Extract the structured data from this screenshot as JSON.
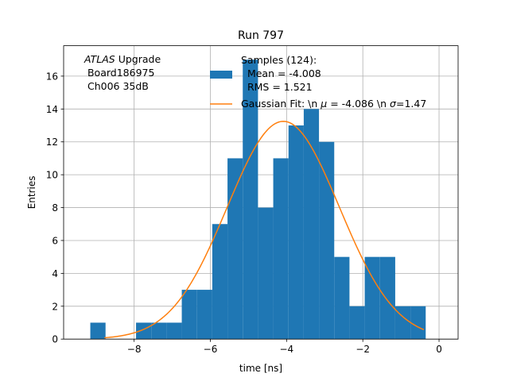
{
  "chart_data": {
    "type": "bar",
    "title": "Run 797",
    "xlabel": "time [ns]",
    "ylabel": "Entries",
    "xlim": [
      -9.85,
      0.5
    ],
    "ylim": [
      0,
      17.85
    ],
    "grid": true,
    "x_ticks": [
      -8,
      -6,
      -4,
      -2,
      0
    ],
    "x_tick_labels": [
      "−8",
      "−6",
      "−4",
      "−2",
      "0"
    ],
    "y_ticks": [
      0,
      2,
      4,
      6,
      8,
      10,
      12,
      14,
      16
    ],
    "y_tick_labels": [
      "0",
      "2",
      "4",
      "6",
      "8",
      "10",
      "12",
      "14",
      "16"
    ],
    "bin_width": 0.4,
    "histogram": {
      "bin_edges": [
        -9.15,
        -8.75,
        -8.35,
        -7.95,
        -7.55,
        -7.15,
        -6.75,
        -6.35,
        -5.95,
        -5.55,
        -5.15,
        -4.75,
        -4.35,
        -3.95,
        -3.55,
        -3.15,
        -2.75,
        -2.35,
        -1.95,
        -1.55,
        -1.15,
        -0.75,
        -0.35
      ],
      "counts": [
        1,
        0,
        0,
        1,
        1,
        1,
        3,
        3,
        7,
        11,
        17,
        8,
        11,
        13,
        14,
        12,
        5,
        2,
        5,
        5,
        2,
        2
      ],
      "color": "#1f77b4"
    },
    "gaussian_fit": {
      "mu": -4.086,
      "sigma": 1.47,
      "amplitude": 13.25,
      "x_range": [
        -8.78,
        -0.4
      ],
      "color": "#ff7f0e"
    },
    "annotation": {
      "line1_italic": "ATLAS",
      "line1_rest": " Upgrade",
      "line2": " Board186975",
      "line3": " Ch006 35dB"
    },
    "legend": {
      "placement": "top-right",
      "entries": [
        {
          "type": "patch",
          "color": "#1f77b4",
          "lines": [
            "Samples (124):",
            "  Mean = -4.008",
            "  RMS = 1.521"
          ]
        },
        {
          "type": "line",
          "color": "#ff7f0e",
          "text_prefix": "Gaussian Fit: \\n ",
          "mu_symbol": "μ",
          "mu_text": " = -4.086 \\n ",
          "sigma_symbol": "σ",
          "sigma_text": "=1.47"
        }
      ]
    }
  }
}
